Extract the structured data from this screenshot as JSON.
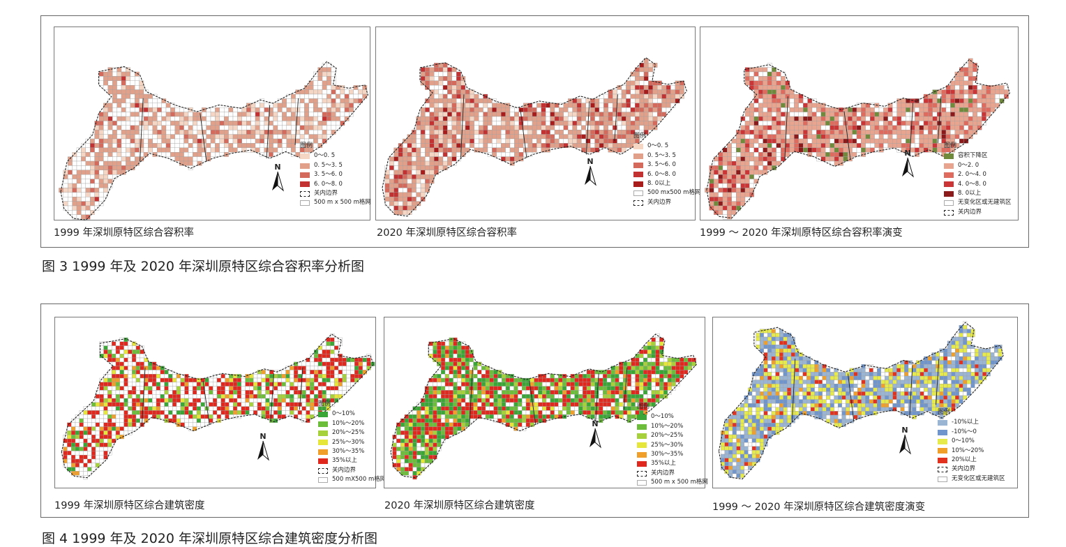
{
  "figure3": {
    "caption": "图 3  1999 年及 2020 年深圳原特区综合容积率分析图",
    "panels": [
      {
        "id": "f3p1",
        "title": "1999 年深圳原特区综合容积率",
        "legend_title": "图例",
        "legend": [
          {
            "label": "0～0. 5",
            "color": "#f5d6c4"
          },
          {
            "label": "0. 5～3. 5",
            "color": "#e0a08a"
          },
          {
            "label": "3. 5～6. 0",
            "color": "#d46a5c"
          },
          {
            "label": "6. 0～8. 0",
            "color": "#c23232"
          },
          {
            "label": "关内边界",
            "kind": "dash"
          },
          {
            "label": "500 m x 500 m格网",
            "kind": "grid"
          }
        ],
        "north": "N"
      },
      {
        "id": "f3p2",
        "title": "2020 年深圳原特区综合容积率",
        "legend_title": "图例",
        "legend": [
          {
            "label": "0～0. 5",
            "color": "#f5d6c4"
          },
          {
            "label": "0. 5～3. 5",
            "color": "#e0a08a"
          },
          {
            "label": "3. 5～6. 0",
            "color": "#d46a5c"
          },
          {
            "label": "6. 0～8. 0",
            "color": "#c23232"
          },
          {
            "label": "8. 0以上",
            "color": "#a81c1c"
          },
          {
            "label": "500 mx500 m格网",
            "kind": "grid"
          },
          {
            "label": "关内边界",
            "kind": "dash"
          }
        ],
        "north": "N"
      },
      {
        "id": "f3p3",
        "title": "1999 ～ 2020 年深圳原特区综合容积率演变",
        "legend_title": "图例",
        "legend": [
          {
            "label": "容积下降区",
            "color": "#6f8a3a"
          },
          {
            "label": "0～2. 0",
            "color": "#e8a48e"
          },
          {
            "label": "2. 0～4. 0",
            "color": "#de6b5e"
          },
          {
            "label": "4. 0～8. 0",
            "color": "#cc3535"
          },
          {
            "label": "8. 0以上",
            "color": "#8c1a1a"
          },
          {
            "label": "无变化区或无建筑区",
            "kind": "grid"
          },
          {
            "label": "关内边界",
            "kind": "dash"
          }
        ],
        "north": "N"
      }
    ]
  },
  "figure4": {
    "caption": "图 4  1999 年及 2020 年深圳原特区综合建筑密度分析图",
    "panels": [
      {
        "id": "f4p1",
        "title": "1999 年深圳原特区综合建筑密度",
        "legend_title": "图例",
        "legend": [
          {
            "label": "0～10%",
            "color": "#3aa635"
          },
          {
            "label": "10%～20%",
            "color": "#6cbd3a"
          },
          {
            "label": "20%～25%",
            "color": "#a7d13a"
          },
          {
            "label": "25%～30%",
            "color": "#e6e63a"
          },
          {
            "label": "30%～35%",
            "color": "#f0a02a"
          },
          {
            "label": "35%以上",
            "color": "#e0281e"
          },
          {
            "label": "关内边界",
            "kind": "dash"
          },
          {
            "label": "500 mX500 m格网",
            "kind": "grid"
          }
        ],
        "north": "N"
      },
      {
        "id": "f4p2",
        "title": "2020 年深圳原特区综合建筑密度",
        "legend_title": "图例",
        "legend": [
          {
            "label": "0～10%",
            "color": "#3aa635"
          },
          {
            "label": "10%～20%",
            "color": "#6cbd3a"
          },
          {
            "label": "20%～25%",
            "color": "#a7d13a"
          },
          {
            "label": "25%～30%",
            "color": "#e6e63a"
          },
          {
            "label": "30%～35%",
            "color": "#f0a02a"
          },
          {
            "label": "35%以上",
            "color": "#e0281e"
          },
          {
            "label": "关内边界",
            "kind": "dash"
          },
          {
            "label": "500 m x 500 m格网",
            "kind": "grid"
          }
        ],
        "north": "N"
      },
      {
        "id": "f4p3",
        "title": "1999 ～ 2020 年深圳原特区综合建筑密度演变",
        "legend_title": "图例",
        "legend": [
          {
            "label": "-10%以上",
            "color": "#9ab4d4"
          },
          {
            "label": "-10%～0",
            "color": "#6f95cc"
          },
          {
            "label": "0～10%",
            "color": "#e6ea4a"
          },
          {
            "label": "10%～20%",
            "color": "#f0a02a"
          },
          {
            "label": "20%以上",
            "color": "#e0321e"
          },
          {
            "label": "关内边界",
            "kind": "dash"
          },
          {
            "label": "无变化区或无建筑区",
            "kind": "grid"
          }
        ],
        "north": "N"
      }
    ]
  },
  "colors": {
    "grid_line": "#9a9a9a",
    "boundary": "#222222",
    "frame": "#666666"
  }
}
